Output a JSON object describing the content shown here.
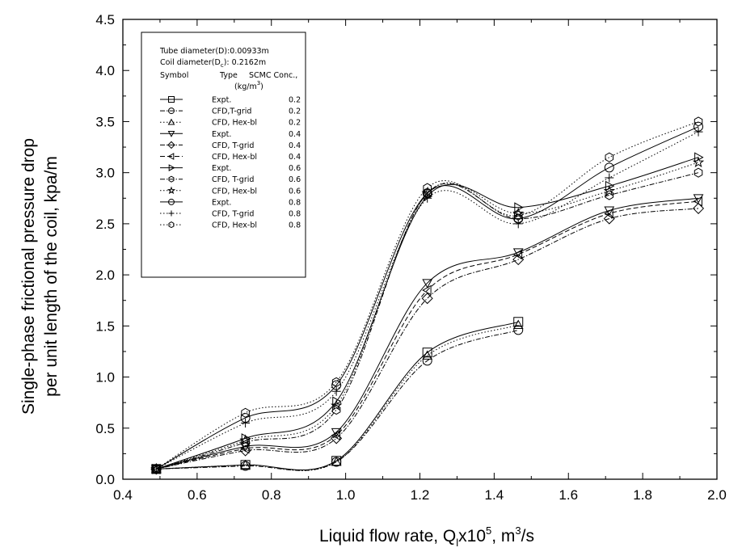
{
  "chart_data": {
    "type": "line",
    "xlabel": "Liquid flow rate, Q",
    "xlabel_sub": "l",
    "xlabel_mid": "x10",
    "xlabel_sup": "5",
    "xlabel_unit_pre": ", m",
    "xlabel_unit_sup": "3",
    "xlabel_unit_post": "/s",
    "ylabel_line1": "Single-phase frictional pressure drop",
    "ylabel_line2": "per unit length of the coil, kpa/m",
    "xlim": [
      0.4,
      2.0
    ],
    "ylim": [
      0.0,
      4.5
    ],
    "xticks": [
      "0.4",
      "0.6",
      "0.8",
      "1.0",
      "1.2",
      "1.4",
      "1.6",
      "1.8",
      "2.0"
    ],
    "yticks": [
      "0.0",
      "0.5",
      "1.0",
      "1.5",
      "2.0",
      "2.5",
      "3.0",
      "3.5",
      "4.0",
      "4.5"
    ],
    "legend_position": "top-left",
    "legend": {
      "line1": "Tube diameter(D):0.00933m",
      "line2_pre": "Coil diameter(D",
      "line2_sub": "c",
      "line2_post": "): 0.2162m",
      "header_symbol": "Symbol",
      "header_type": "Type",
      "header_conc": "SCMC Conc.,",
      "header_unit_pre": "(kg/m",
      "header_unit_sup": "3",
      "header_unit_post": ")"
    },
    "series": [
      {
        "type": "Expt.",
        "conc": "0.2",
        "marker": "square",
        "dash": "solid",
        "x": [
          0.49,
          0.73,
          0.975,
          1.22,
          1.465
        ],
        "y": [
          0.1,
          0.14,
          0.18,
          1.24,
          1.54
        ]
      },
      {
        "type": "CFD,T-grid",
        "conc": "0.2",
        "marker": "circle",
        "dash": "dashdot",
        "x": [
          0.49,
          0.73,
          0.975,
          1.22,
          1.465
        ],
        "y": [
          0.1,
          0.13,
          0.17,
          1.16,
          1.46
        ]
      },
      {
        "type": "CFD, Hex-bl",
        "conc": "0.2",
        "marker": "triangle-up",
        "dash": "dotted",
        "x": [
          0.49,
          0.73,
          0.975,
          1.22,
          1.465
        ],
        "y": [
          0.1,
          0.14,
          0.17,
          1.21,
          1.51
        ]
      },
      {
        "type": "Expt.",
        "conc": "0.4",
        "marker": "triangle-down",
        "dash": "solid",
        "x": [
          0.49,
          0.73,
          0.975,
          1.22,
          1.465,
          1.71,
          1.95
        ],
        "y": [
          0.1,
          0.32,
          0.46,
          1.92,
          2.22,
          2.63,
          2.75
        ]
      },
      {
        "type": "CFD, T-grid",
        "conc": "0.4",
        "marker": "diamond",
        "dash": "dashdot",
        "x": [
          0.49,
          0.73,
          0.975,
          1.22,
          1.465,
          1.71,
          1.95
        ],
        "y": [
          0.1,
          0.28,
          0.4,
          1.77,
          2.15,
          2.55,
          2.65
        ]
      },
      {
        "type": "CFD, Hex-bl",
        "conc": "0.4",
        "marker": "triangle-left",
        "dash": "dashed",
        "x": [
          0.49,
          0.73,
          0.975,
          1.22,
          1.465,
          1.71,
          1.95
        ],
        "y": [
          0.1,
          0.3,
          0.43,
          1.85,
          2.2,
          2.6,
          2.72
        ]
      },
      {
        "type": "Expt.",
        "conc": "0.6",
        "marker": "triangle-right",
        "dash": "solid",
        "x": [
          0.49,
          0.73,
          0.975,
          1.22,
          1.465,
          1.71,
          1.95
        ],
        "y": [
          0.1,
          0.4,
          0.76,
          2.77,
          2.66,
          2.87,
          3.15
        ]
      },
      {
        "type": "CFD, T-grid",
        "conc": "0.6",
        "marker": "hexagon",
        "dash": "dashdot",
        "x": [
          0.49,
          0.73,
          0.975,
          1.22,
          1.465,
          1.71,
          1.95
        ],
        "y": [
          0.1,
          0.36,
          0.68,
          2.8,
          2.55,
          2.78,
          3.0
        ]
      },
      {
        "type": "CFD, Hex-bl",
        "conc": "0.6",
        "marker": "star",
        "dash": "dotted",
        "x": [
          0.49,
          0.73,
          0.975,
          1.22,
          1.465,
          1.71,
          1.95
        ],
        "y": [
          0.1,
          0.38,
          0.72,
          2.8,
          2.6,
          2.82,
          3.1
        ]
      },
      {
        "type": "Expt.",
        "conc": "0.8",
        "marker": "circle",
        "dash": "solid",
        "x": [
          0.49,
          0.73,
          0.975,
          1.22,
          1.465,
          1.71,
          1.95
        ],
        "y": [
          0.1,
          0.6,
          0.92,
          2.8,
          2.55,
          3.05,
          3.45
        ]
      },
      {
        "type": "CFD, T-grid",
        "conc": "0.8",
        "marker": "plus",
        "dash": "dotted",
        "x": [
          0.49,
          0.73,
          0.975,
          1.22,
          1.465,
          1.71,
          1.95
        ],
        "y": [
          0.1,
          0.55,
          0.86,
          2.75,
          2.5,
          2.95,
          3.4
        ]
      },
      {
        "type": "CFD, Hex-bl",
        "conc": "0.8",
        "marker": "hexagon",
        "dash": "dotted",
        "x": [
          0.49,
          0.73,
          0.975,
          1.22,
          1.465,
          1.71,
          1.95
        ],
        "y": [
          0.1,
          0.65,
          0.95,
          2.85,
          2.58,
          3.15,
          3.5
        ]
      }
    ]
  }
}
